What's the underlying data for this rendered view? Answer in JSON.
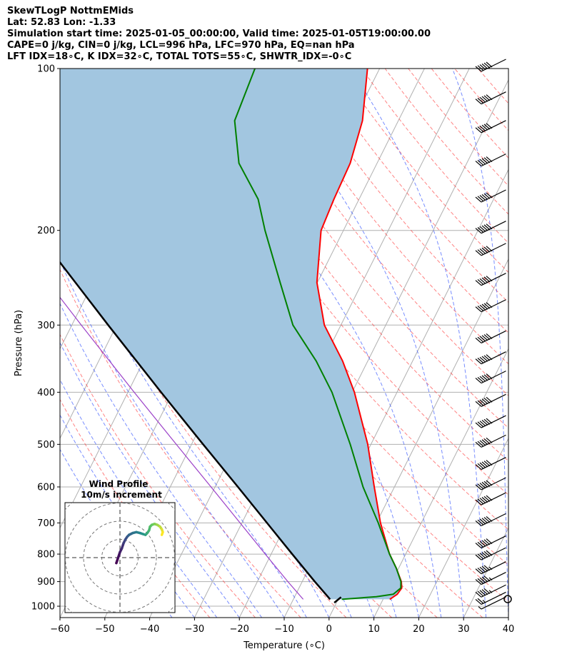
{
  "header": {
    "line1": "SkewTLogP NottmEMids",
    "line2": "Lat: 52.83   Lon: -1.33",
    "line3": "Simulation start time: 2025-01-05_00:00:00, Valid time: 2025-01-05T19:00:00.00",
    "line4": "CAPE=0 j/kg, CIN=0 j/kg, LCL=996 hPa, LFC=970 hPa, EQ=nan hPa",
    "line5": "LFT IDX=18∘C, K IDX=32∘C, TOTAL TOTS=55∘C, SHWTR_IDX=-0∘C"
  },
  "chart_data": [
    {
      "type": "line",
      "subtype": "skew-t-log-p",
      "xlabel": "Temperature (∘C)",
      "ylabel": "Pressure (hPa)",
      "xlim": [
        -60,
        40
      ],
      "ylim": [
        1050,
        100
      ],
      "skew_deg_per_decade": 60,
      "xticks": [
        -60,
        -50,
        -40,
        -30,
        -20,
        -10,
        0,
        10,
        20,
        30,
        40
      ],
      "xtick_labels": [
        "−60",
        "−50",
        "−40",
        "−30",
        "−20",
        "−10",
        "0",
        "10",
        "20",
        "30",
        "40"
      ],
      "yticks": [
        100,
        200,
        300,
        400,
        500,
        600,
        700,
        800,
        900,
        1000
      ],
      "ytick_labels": [
        "100",
        "200",
        "300",
        "400",
        "500",
        "600",
        "700",
        "800",
        "900",
        "1000"
      ],
      "grid": true,
      "series": [
        {
          "name": "temperature",
          "color": "#ff0000",
          "points": [
            [
              971,
              11.5
            ],
            [
              950,
              12.6
            ],
            [
              925,
              12.9
            ],
            [
              900,
              12.1
            ],
            [
              850,
              9.5
            ],
            [
              800,
              6.4
            ],
            [
              700,
              0.9
            ],
            [
              600,
              -4.5
            ],
            [
              500,
              -10.7
            ],
            [
              400,
              -19.5
            ],
            [
              350,
              -25.6
            ],
            [
              300,
              -33.7
            ],
            [
              250,
              -40.1
            ],
            [
              200,
              -45.0
            ],
            [
              175,
              -45.6
            ],
            [
              150,
              -46.0
            ],
            [
              125,
              -48.0
            ],
            [
              100,
              -52.7
            ]
          ]
        },
        {
          "name": "dewpoint",
          "color": "#008000",
          "points": [
            [
              971,
              0.8
            ],
            [
              960,
              8.2
            ],
            [
              950,
              11.7
            ],
            [
              925,
              12.7
            ],
            [
              900,
              12.0
            ],
            [
              850,
              9.5
            ],
            [
              800,
              6.4
            ],
            [
              700,
              0.4
            ],
            [
              600,
              -7.0
            ],
            [
              500,
              -14.6
            ],
            [
              400,
              -24.5
            ],
            [
              350,
              -31.5
            ],
            [
              300,
              -40.7
            ],
            [
              250,
              -48.3
            ],
            [
              200,
              -57.5
            ],
            [
              175,
              -62.5
            ],
            [
              150,
              -70.8
            ],
            [
              125,
              -76.5
            ],
            [
              100,
              -77.8
            ]
          ]
        },
        {
          "name": "parcel",
          "color": "#000000",
          "points": [
            [
              971,
              -1.8
            ],
            [
              900,
              -7.2
            ],
            [
              800,
              -15.3
            ],
            [
              700,
              -24.4
            ],
            [
              600,
              -34.9
            ],
            [
              500,
              -47.4
            ],
            [
              400,
              -62.6
            ],
            [
              300,
              -81.9
            ],
            [
              200,
              -108.7
            ],
            [
              150,
              -127.2
            ],
            [
              100,
              -153.7
            ]
          ]
        }
      ],
      "surface_dewpoint_marker": {
        "points": [
          [
            985,
            -0.5
          ],
          [
            962,
            0.4
          ]
        ],
        "color": "#000000"
      },
      "wind_barbs": {
        "pressures": [
          1000,
          980,
          950,
          900,
          860,
          810,
          770,
          700,
          640,
          600,
          550,
          500,
          460,
          420,
          380,
          350,
          320,
          280,
          250,
          220,
          200,
          175,
          150,
          130,
          115,
          100
        ],
        "speeds_kt": [
          5,
          25,
          55,
          55,
          55,
          60,
          60,
          60,
          60,
          60,
          60,
          60,
          60,
          60,
          60,
          60,
          60,
          60,
          60,
          60,
          60,
          60,
          60,
          60,
          60,
          60
        ],
        "direction": "west-southwest"
      },
      "calm_marker_pressure": 970,
      "fill": {
        "between": [
          "parcel",
          "temperature"
        ],
        "color": "#a2c6e0"
      }
    },
    {
      "type": "line",
      "subtype": "hodograph",
      "title": "Wind Profile",
      "subtitle": "10m/s increment",
      "ring_increment_ms": 10,
      "colormap": "viridis",
      "points_uv": [
        [
          -2,
          -3
        ],
        [
          -1,
          0
        ],
        [
          0,
          3
        ],
        [
          1,
          5
        ],
        [
          2,
          8
        ],
        [
          3,
          10
        ],
        [
          4,
          11.5
        ],
        [
          5,
          12.5
        ],
        [
          7,
          13.5
        ],
        [
          9,
          14
        ],
        [
          11,
          13.5
        ],
        [
          12.5,
          13
        ],
        [
          14,
          12.5
        ],
        [
          15,
          13.5
        ],
        [
          16,
          15
        ],
        [
          16.5,
          17
        ],
        [
          17.5,
          18
        ],
        [
          19,
          18.5
        ],
        [
          20.5,
          18
        ],
        [
          22,
          17
        ],
        [
          23,
          15.5
        ],
        [
          23.5,
          14
        ],
        [
          23,
          12.5
        ]
      ]
    }
  ]
}
